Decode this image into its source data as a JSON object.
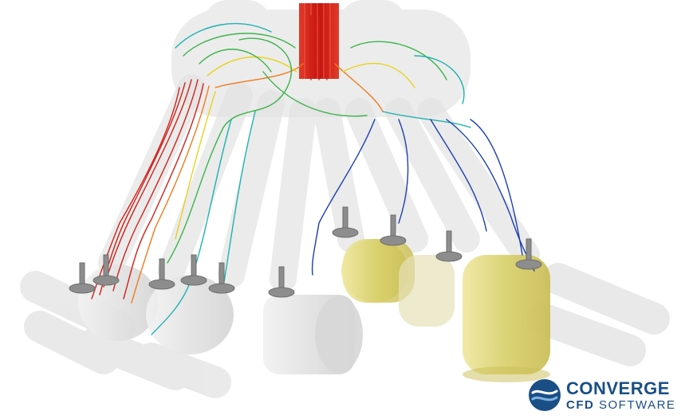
{
  "image": {
    "subject": "engine-intake-manifold-flow-simulation",
    "logo": {
      "line1": "CONVERGE",
      "line2_part1": "CFD",
      "line2_part2": " SOFTWARE"
    },
    "colors": {
      "background": "#ffffff",
      "geometry": "#d9d9d9",
      "cylinder_fill": "#d8cf6a",
      "valve": "#8d8d8d",
      "logo_blue": "#1a4f86",
      "streamline_red": "#d0201a",
      "streamline_orange": "#f07b1c",
      "streamline_yellow": "#e8d21d",
      "streamline_green": "#3cb44a",
      "streamline_cyan": "#1fb1b0",
      "streamline_blue": "#1d3fb0"
    }
  }
}
